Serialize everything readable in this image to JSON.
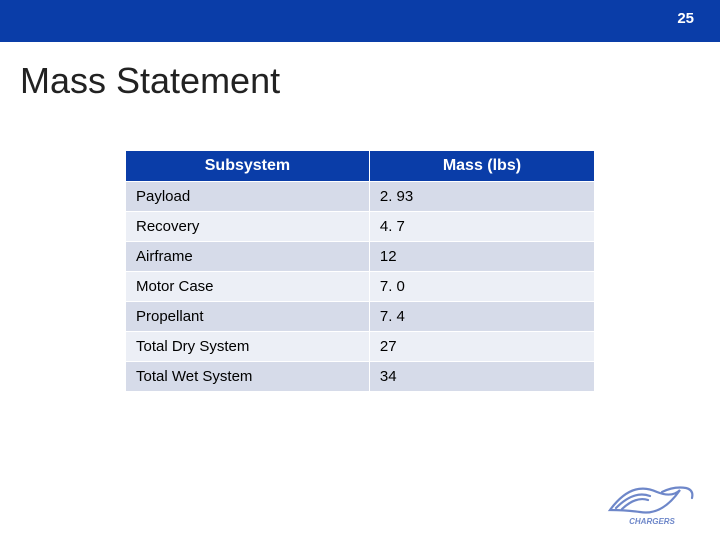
{
  "page_number": "25",
  "title": "Mass Statement",
  "colors": {
    "topbar_bg": "#0a3da8",
    "pagenum_text": "#ffffff",
    "title_text": "#222222",
    "header_bg": "#0a3da8",
    "header_text": "#ffffff",
    "row_even_bg": "#d6dbe9",
    "row_odd_bg": "#eceff6",
    "cell_border": "#ffffff",
    "cell_text": "#000000",
    "logo_color": "#5f7bc4"
  },
  "table": {
    "columns": [
      "Subsystem",
      "Mass (lbs)"
    ],
    "rows": [
      [
        "Payload",
        "2. 93"
      ],
      [
        "Recovery",
        "4. 7"
      ],
      [
        "Airframe",
        "12"
      ],
      [
        "Motor Case",
        "7. 0"
      ],
      [
        "Propellant",
        "7. 4"
      ],
      [
        "Total Dry System",
        "27"
      ],
      [
        "Total Wet System",
        "34"
      ]
    ]
  },
  "logo_label": "CHARGERS"
}
